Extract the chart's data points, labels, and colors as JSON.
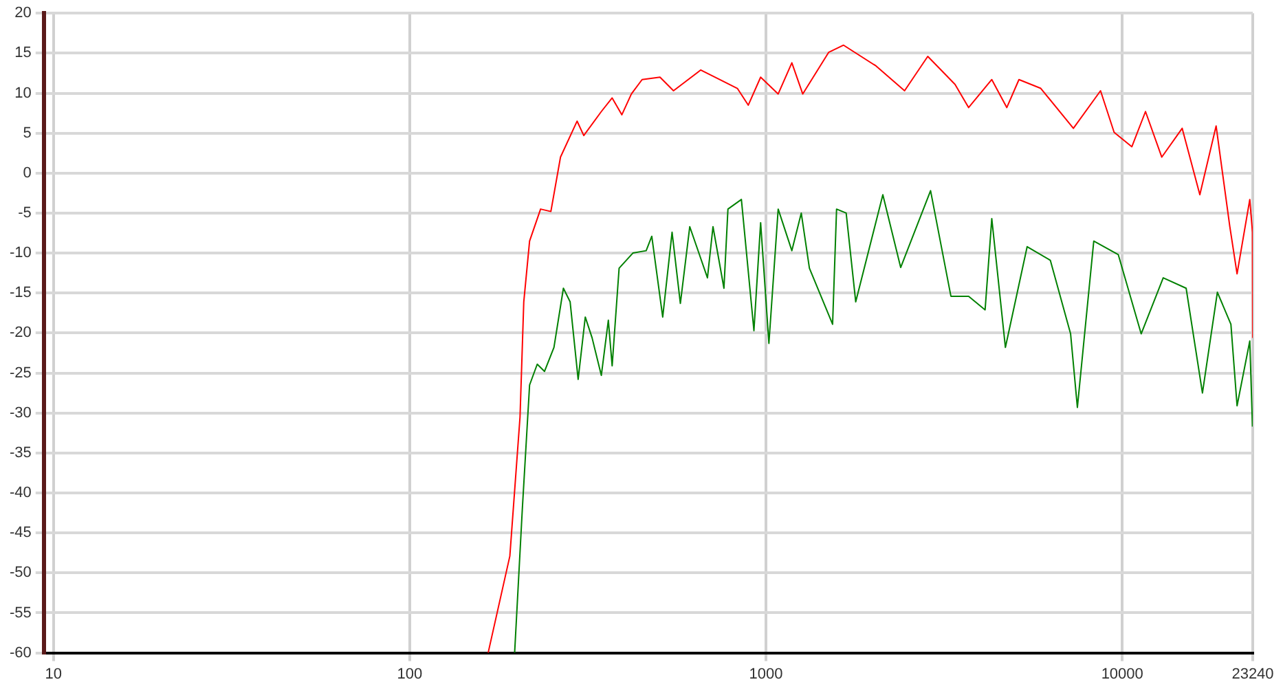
{
  "chart_data": {
    "type": "line",
    "log": "x",
    "grid": true,
    "marker": "none",
    "line_style": "solid",
    "legend": false,
    "xlim": [
      9.4,
      23240
    ],
    "xticks": [
      10,
      100,
      1000,
      10000,
      23240
    ],
    "ylim": [
      -60,
      20
    ],
    "yticks": [
      -60,
      -55,
      -50,
      -45,
      -40,
      -35,
      -30,
      -25,
      -20,
      -15,
      -10,
      -5,
      0,
      5,
      10,
      15,
      20
    ],
    "series": [
      {
        "color": "#ff0000",
        "x": [
          166,
          191,
          204,
          209,
          217,
          233,
          249,
          265,
          295,
          308,
          345,
          370,
          394,
          419,
          449,
          504,
          550,
          656,
          741,
          831,
          892,
          966,
          1082,
          1182,
          1268,
          1499,
          1651,
          2037,
          2449,
          2845,
          3393,
          3705,
          4303,
          4742,
          5129,
          5906,
          7291,
          8690,
          9487,
          10640,
          11620,
          12910,
          14730,
          16510,
          18340,
          20040,
          21000,
          22800,
          23200,
          23240
        ],
        "values": [
          -60,
          -47.9,
          -30.5,
          -16.1,
          -8.5,
          -4.5,
          -4.8,
          2,
          6.5,
          4.7,
          7.7,
          9.4,
          7.3,
          9.9,
          11.7,
          12,
          10.3,
          12.9,
          11.7,
          10.6,
          8.5,
          12,
          9.9,
          13.8,
          9.9,
          15.1,
          16,
          13.4,
          10.3,
          14.6,
          11.1,
          8.2,
          11.7,
          8.2,
          11.7,
          10.6,
          5.6,
          10.3,
          5.1,
          3.3,
          7.7,
          2,
          5.6,
          -2.7,
          5.9,
          -6.7,
          -12.6,
          -3.3,
          -7.4,
          -20.6
        ]
      },
      {
        "color": "#008000",
        "x": [
          197,
          207,
          217,
          228,
          239,
          254,
          270,
          282,
          297,
          311,
          325,
          345,
          361,
          370,
          387,
          423,
          461,
          478,
          513,
          545,
          575,
          611,
          685,
          710,
          762,
          782,
          853,
          925,
          966,
          1019,
          1082,
          1182,
          1256,
          1324,
          1538,
          1578,
          1679,
          1786,
          2128,
          2388,
          2897,
          3304,
          3705,
          4121,
          4303,
          4699,
          5408,
          6281,
          7161,
          7482,
          8318,
          9747,
          11300,
          13030,
          15110,
          16790,
          18490,
          20180,
          21000,
          22800,
          23200
        ],
        "values": [
          -60,
          -42.1,
          -26.5,
          -23.9,
          -24.8,
          -21.8,
          -14.4,
          -16.1,
          -25.8,
          -18,
          -20.6,
          -25.3,
          -18.4,
          -24.1,
          -11.9,
          -10,
          -9.7,
          -7.9,
          -18,
          -7.4,
          -16.3,
          -6.7,
          -13.1,
          -6.7,
          -14.4,
          -4.5,
          -3.3,
          -19.7,
          -6.2,
          -21.3,
          -4.5,
          -9.7,
          -5,
          -11.9,
          -18.9,
          -4.5,
          -5,
          -16.1,
          -2.7,
          -11.8,
          -2.2,
          -15.4,
          -15.4,
          -17.1,
          -5.7,
          -21.8,
          -9.2,
          -10.9,
          -20.1,
          -29.3,
          -8.5,
          -10.2,
          -20.1,
          -13.1,
          -14.4,
          -27.5,
          -14.9,
          -18.9,
          -29.1,
          -21,
          -31.7
        ]
      }
    ]
  }
}
